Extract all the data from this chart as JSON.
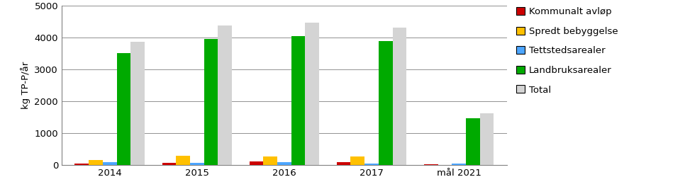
{
  "categories": [
    "2014",
    "2015",
    "2016",
    "2017",
    "mål 2021"
  ],
  "series": {
    "Kommunalt avløp": [
      50,
      60,
      100,
      80,
      30
    ],
    "Spredt bebyggelse": [
      150,
      280,
      270,
      270,
      0
    ],
    "Tettstedsarealer": [
      80,
      70,
      80,
      50,
      50
    ],
    "Landbruksarealer": [
      3520,
      3970,
      4050,
      3900,
      1470
    ],
    "Total": [
      3870,
      4380,
      4480,
      4320,
      1620
    ]
  },
  "colors": {
    "Kommunalt avløp": "#cc0000",
    "Spredt bebyggelse": "#ffc000",
    "Tettstedsarealer": "#4da6ff",
    "Landbruksarealer": "#00aa00",
    "Total": "#d4d4d4"
  },
  "ylabel": "kg TP-P/år",
  "ylim": [
    0,
    5000
  ],
  "yticks": [
    0,
    1000,
    2000,
    3000,
    4000,
    5000
  ],
  "bar_width": 0.16,
  "legend_order": [
    "Kommunalt avløp",
    "Spredt bebyggelse",
    "Tettstedsarealer",
    "Landbruksarealer",
    "Total"
  ],
  "background_color": "#ffffff",
  "grid_color": "#808080"
}
